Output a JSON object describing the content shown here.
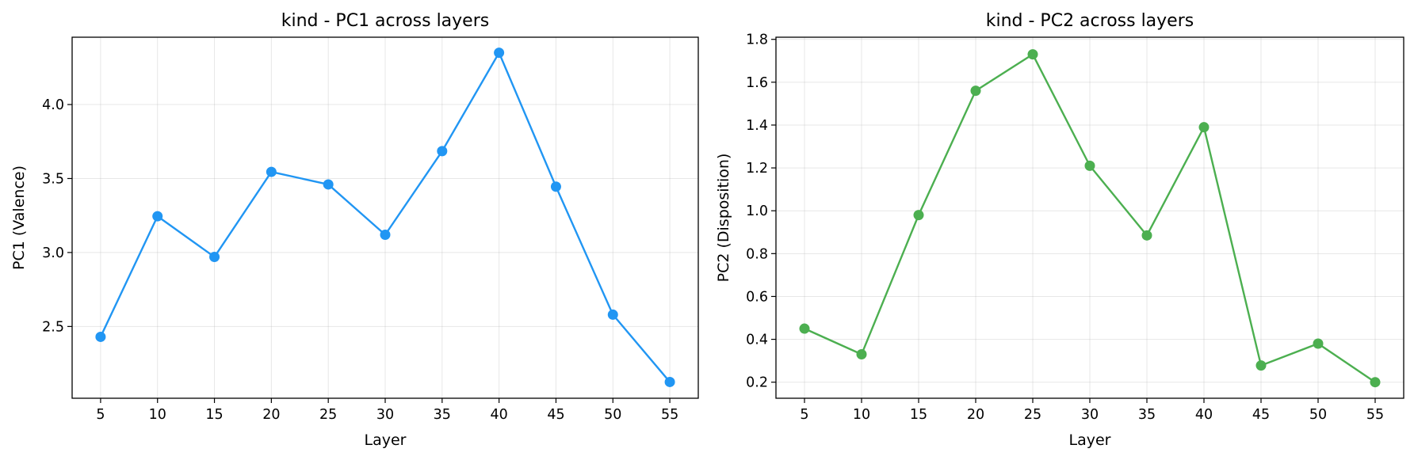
{
  "chart_data": [
    {
      "type": "line",
      "title": "kind - PC1 across layers",
      "xlabel": "Layer",
      "ylabel": "PC1 (Valence)",
      "x": [
        5,
        10,
        15,
        20,
        25,
        30,
        35,
        40,
        45,
        50,
        55
      ],
      "xticks": [
        "5",
        "10",
        "15",
        "20",
        "25",
        "30",
        "35",
        "40",
        "45",
        "50",
        "55"
      ],
      "yticks": [
        "2.5",
        "3.0",
        "3.5",
        "4.0"
      ],
      "xlim": [
        2.5,
        57.5
      ],
      "ylim": [
        2.015,
        4.455
      ],
      "grid": true,
      "series": [
        {
          "color": "#2196F3",
          "marker": "circle",
          "values": [
            2.43,
            3.245,
            2.97,
            3.545,
            3.46,
            3.12,
            3.685,
            4.35,
            3.445,
            2.58,
            2.125
          ]
        }
      ]
    },
    {
      "type": "line",
      "title": "kind - PC2 across layers",
      "xlabel": "Layer",
      "ylabel": "PC2 (Disposition)",
      "x": [
        5,
        10,
        15,
        20,
        25,
        30,
        35,
        40,
        45,
        50,
        55
      ],
      "xticks": [
        "5",
        "10",
        "15",
        "20",
        "25",
        "30",
        "35",
        "40",
        "45",
        "50",
        "55"
      ],
      "yticks": [
        "0.2",
        "0.4",
        "0.6",
        "0.8",
        "1.0",
        "1.2",
        "1.4",
        "1.6",
        "1.8"
      ],
      "xlim": [
        2.5,
        57.5
      ],
      "ylim": [
        0.125,
        1.81
      ],
      "grid": true,
      "series": [
        {
          "color": "#4CAF50",
          "marker": "circle",
          "values": [
            0.45,
            0.33,
            0.98,
            1.56,
            1.73,
            1.21,
            0.885,
            1.39,
            0.278,
            0.38,
            0.2
          ]
        }
      ]
    }
  ]
}
